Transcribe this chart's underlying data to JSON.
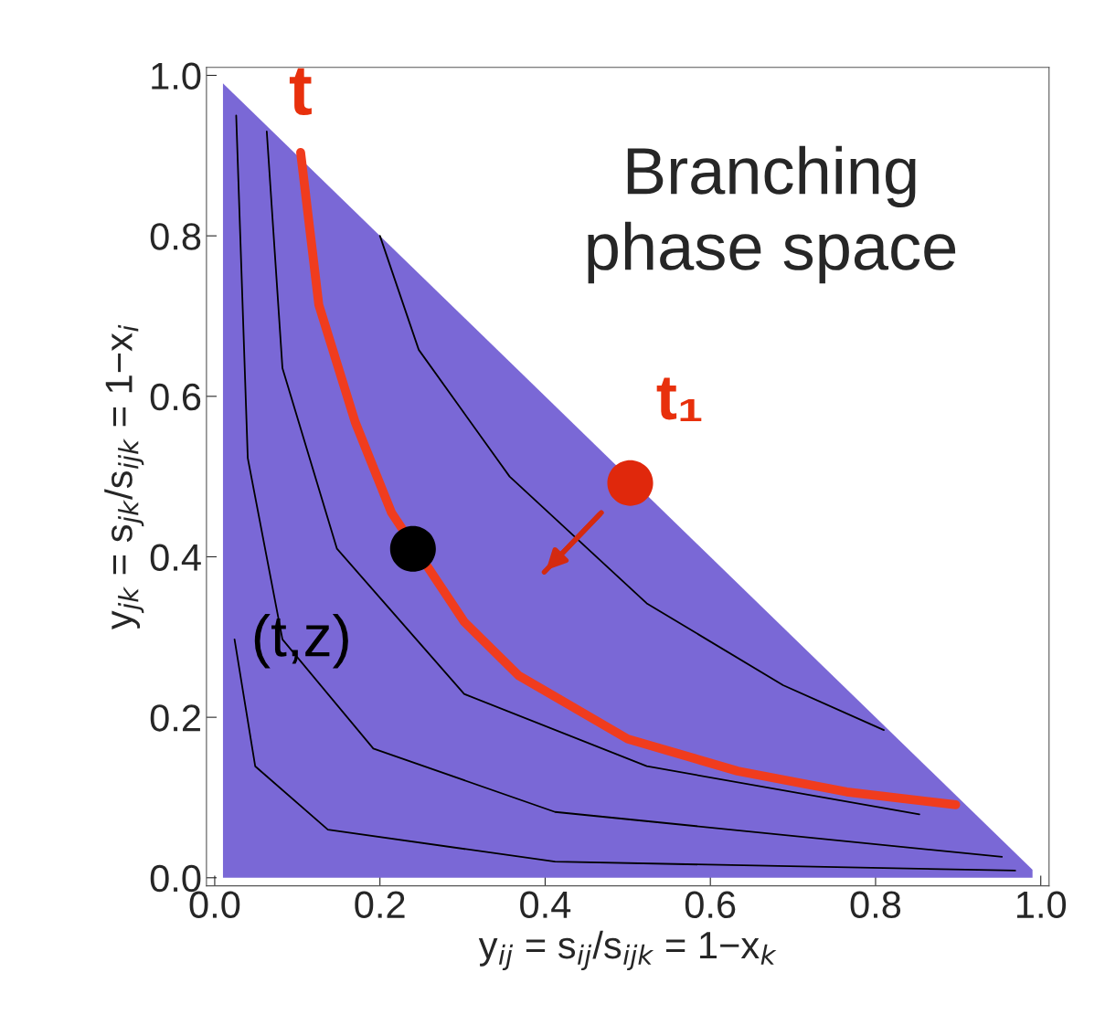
{
  "chart_data": {
    "type": "line",
    "xlabel": "y$_{ij}$ = s$_{ij}$/s$_{ijk}$ = 1−x$_{k}$",
    "ylabel": "y$_{jk}$ = s$_{jk}$/s$_{ijk}$ = 1−x$_{i}$",
    "xlim": [
      -0.01,
      1.01
    ],
    "ylim": [
      -0.01,
      1.01
    ],
    "xticks": [
      {
        "value": 0,
        "label": "0.0"
      },
      0.2,
      0.4,
      0.6,
      0.8,
      {
        "value": 1,
        "label": "1.0"
      }
    ],
    "yticks": [
      {
        "value": 0,
        "label": "0.0"
      },
      0.2,
      0.4,
      0.6,
      0.8,
      {
        "value": 1,
        "label": "1.0"
      }
    ],
    "grid": false,
    "series": [
      {
        "type": "area",
        "color": "#7a68d6",
        "x": [
          0.01,
          0.99
        ],
        "values": [
          0.99,
          0.01
        ]
      },
      {
        "color": "#000000",
        "x": [
          0.2,
          0.247,
          0.357,
          0.523,
          0.688,
          0.81
        ],
        "values": [
          0.8,
          0.658,
          0.5,
          0.342,
          0.24,
          0.184
        ]
      },
      {
        "color": "#000000",
        "x": [
          0.063,
          0.082,
          0.148,
          0.302,
          0.523,
          0.853
        ],
        "values": [
          0.93,
          0.635,
          0.41,
          0.229,
          0.139,
          0.079
        ]
      },
      {
        "color": "#000000",
        "x": [
          0.026,
          0.04,
          0.082,
          0.192,
          0.412,
          0.953
        ],
        "values": [
          0.95,
          0.523,
          0.297,
          0.161,
          0.082,
          0.026
        ]
      },
      {
        "color": "#000000",
        "x": [
          0.024,
          0.049,
          0.137,
          0.412,
          0.969
        ],
        "values": [
          0.297,
          0.139,
          0.06,
          0.02,
          0.009
        ]
      },
      {
        "color": "#f03c1e",
        "x": [
          0.104,
          0.126,
          0.17,
          0.214,
          0.302,
          0.368,
          0.5,
          0.633,
          0.765,
          0.897
        ],
        "values": [
          0.904,
          0.714,
          0.568,
          0.455,
          0.319,
          0.252,
          0.173,
          0.133,
          0.107,
          0.091
        ]
      },
      {
        "color": "#d42a10",
        "x": [
          0.468,
          0.399
        ],
        "values": [
          0.455,
          0.381
        ]
      },
      {
        "type": "scatter",
        "color": "#e0280c",
        "x": [
          0.503
        ],
        "values": [
          0.492
        ]
      },
      {
        "type": "scatter",
        "color": "#000000",
        "x": [
          0.24
        ],
        "values": [
          0.41
        ]
      }
    ],
    "annotations": [
      {
        "text": "t",
        "x": 0.104,
        "y": 0.904
      },
      {
        "text": "t₁",
        "x": 0.503,
        "y": 0.492
      },
      {
        "text": "(t,z)",
        "x": 0.24,
        "y": 0.41
      },
      "Branching\nphase space"
    ]
  }
}
